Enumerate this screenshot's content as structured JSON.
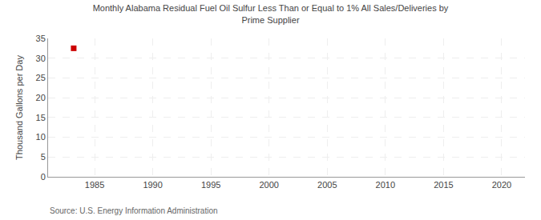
{
  "chart_data": {
    "type": "scatter",
    "title": "Monthly Alabama Residual Fuel Oil Sulfur Less Than or Equal to 1% All Sales/Deliveries by\nPrime Supplier",
    "ylabel": "Thousand Gallons per Day",
    "annotations": [
      {
        "text": "Source: U.S. Energy Information Administration"
      }
    ],
    "x": [
      1983.2
    ],
    "values": [
      32.5
    ],
    "color": "#cc0000",
    "marker": "square",
    "xlim": [
      1981,
      2022
    ],
    "ylim": [
      0,
      35
    ],
    "xticks": [
      1985,
      1990,
      1995,
      2000,
      2005,
      2010,
      2015,
      2020
    ],
    "yticks": [
      0,
      5,
      10,
      15,
      20,
      25,
      30,
      35
    ],
    "grid": true
  }
}
